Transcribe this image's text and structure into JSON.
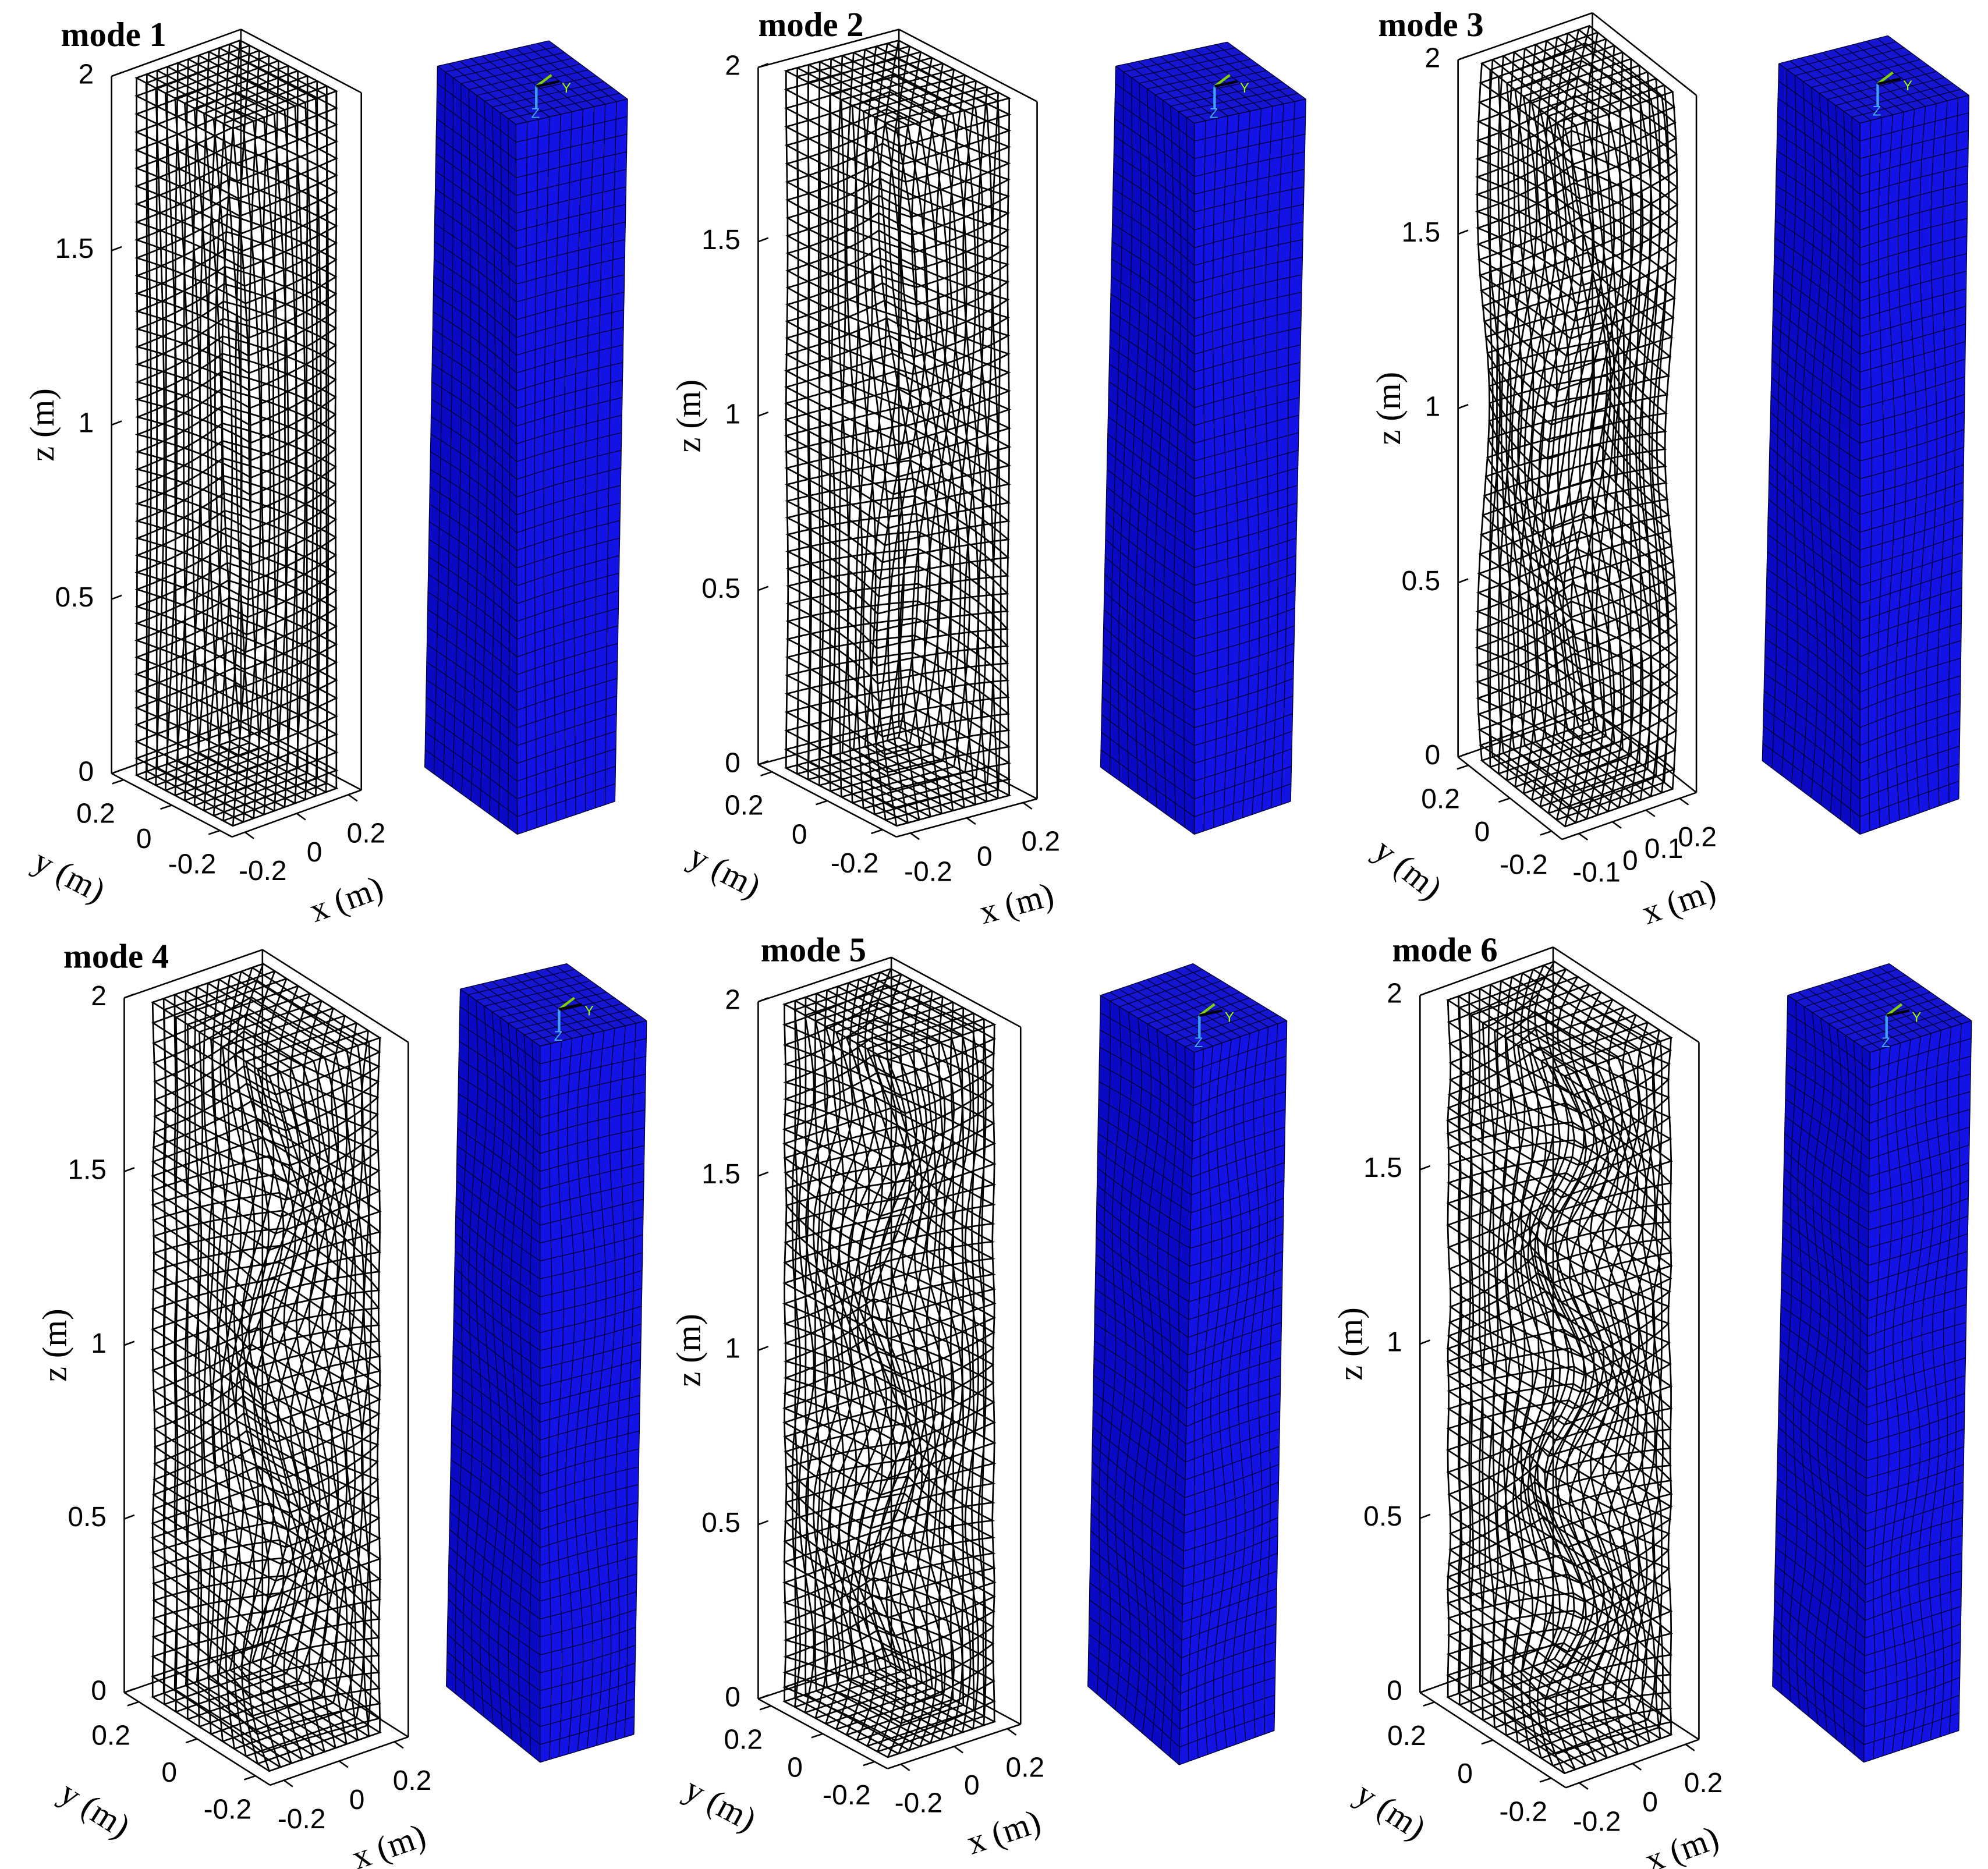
{
  "chart_data": [
    {
      "type": "mesh3d",
      "title": "mode 1",
      "xlabel": "x (m)",
      "ylabel": "y (m)",
      "zlabel": "z (m)",
      "xlim": [
        -0.25,
        0.25
      ],
      "ylim": [
        -0.25,
        0.25
      ],
      "zlim": [
        0,
        2
      ],
      "xticks": [
        -0.2,
        0,
        0.2
      ],
      "yticks": [
        -0.2,
        0,
        0.2
      ],
      "zticks": [
        0,
        0.5,
        1,
        1.5,
        2
      ],
      "triad_labels": [
        "Y",
        "Z"
      ]
    },
    {
      "type": "mesh3d",
      "title": "mode 2",
      "xlabel": "x (m)",
      "ylabel": "y (m)",
      "zlabel": "z (m)",
      "xlim": [
        -0.25,
        0.25
      ],
      "ylim": [
        -0.25,
        0.25
      ],
      "zlim": [
        0,
        2
      ],
      "xticks": [
        -0.2,
        0,
        0.2
      ],
      "yticks": [
        -0.2,
        0,
        0.2
      ],
      "zticks": [
        0,
        0.5,
        1,
        1.5,
        2
      ],
      "triad_labels": [
        "Y",
        "Z"
      ]
    },
    {
      "type": "mesh3d",
      "title": "mode 3",
      "xlabel": "x (m)",
      "ylabel": "y (m)",
      "zlabel": "z (m)",
      "xlim": [
        -0.15,
        0.25
      ],
      "ylim": [
        -0.25,
        0.25
      ],
      "zlim": [
        0,
        2
      ],
      "xticks": [
        -0.1,
        0,
        0.1,
        0.2
      ],
      "yticks": [
        -0.2,
        0,
        0.2
      ],
      "zticks": [
        0,
        0.5,
        1,
        1.5,
        2
      ],
      "triad_labels": [
        "Y",
        "Z"
      ]
    },
    {
      "type": "mesh3d",
      "title": "mode 4",
      "xlabel": "x (m)",
      "ylabel": "y (m)",
      "zlabel": "z (m)",
      "xlim": [
        -0.25,
        0.25
      ],
      "ylim": [
        -0.25,
        0.25
      ],
      "zlim": [
        0,
        2
      ],
      "xticks": [
        -0.2,
        0,
        0.2
      ],
      "yticks": [
        -0.2,
        0,
        0.2
      ],
      "zticks": [
        0,
        0.5,
        1,
        1.5,
        2
      ],
      "triad_labels": [
        "Y",
        "Z"
      ]
    },
    {
      "type": "mesh3d",
      "title": "mode 5",
      "xlabel": "x (m)",
      "ylabel": "y (m)",
      "zlabel": "z (m)",
      "xlim": [
        -0.25,
        0.25
      ],
      "ylim": [
        -0.25,
        0.25
      ],
      "zlim": [
        0,
        2
      ],
      "xticks": [
        -0.2,
        0,
        0.2
      ],
      "yticks": [
        -0.2,
        0,
        0.2
      ],
      "zticks": [
        0,
        0.5,
        1,
        1.5,
        2
      ],
      "triad_labels": [
        "Y",
        "Z"
      ]
    },
    {
      "type": "mesh3d",
      "title": "mode 6",
      "xlabel": "x (m)",
      "ylabel": "y (m)",
      "zlabel": "z (m)",
      "xlim": [
        -0.25,
        0.25
      ],
      "ylim": [
        -0.25,
        0.25
      ],
      "zlim": [
        0,
        2
      ],
      "xticks": [
        -0.2,
        0,
        0.2
      ],
      "yticks": [
        -0.2,
        0,
        0.2
      ],
      "zticks": [
        0,
        0.5,
        1,
        1.5,
        2
      ],
      "triad_labels": [
        "Y",
        "Z"
      ]
    }
  ]
}
